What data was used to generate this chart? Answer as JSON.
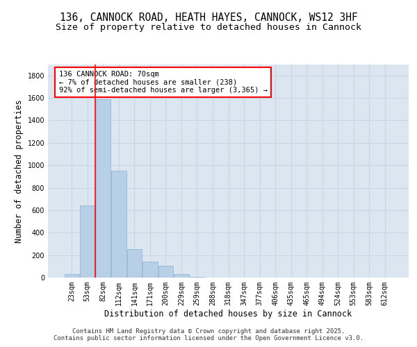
{
  "title_line1": "136, CANNOCK ROAD, HEATH HAYES, CANNOCK, WS12 3HF",
  "title_line2": "Size of property relative to detached houses in Cannock",
  "xlabel": "Distribution of detached houses by size in Cannock",
  "ylabel": "Number of detached properties",
  "categories": [
    "23sqm",
    "53sqm",
    "82sqm",
    "112sqm",
    "141sqm",
    "171sqm",
    "200sqm",
    "229sqm",
    "259sqm",
    "288sqm",
    "318sqm",
    "347sqm",
    "377sqm",
    "406sqm",
    "435sqm",
    "465sqm",
    "494sqm",
    "524sqm",
    "553sqm",
    "583sqm",
    "612sqm"
  ],
  "values": [
    30,
    645,
    1590,
    950,
    255,
    140,
    105,
    30,
    8,
    0,
    0,
    0,
    0,
    0,
    0,
    0,
    0,
    0,
    0,
    0,
    0
  ],
  "bar_color": "#b8cfe8",
  "bar_edge_color": "#8ab0d0",
  "grid_color": "#c8d4e4",
  "background_color": "#dce6f0",
  "annotation_text": "136 CANNOCK ROAD: 70sqm\n← 7% of detached houses are smaller (238)\n92% of semi-detached houses are larger (3,365) →",
  "annotation_box_color": "white",
  "annotation_box_edge": "red",
  "vline_color": "red",
  "ylim": [
    0,
    1900
  ],
  "yticks": [
    0,
    200,
    400,
    600,
    800,
    1000,
    1200,
    1400,
    1600,
    1800
  ],
  "footer_text": "Contains HM Land Registry data © Crown copyright and database right 2025.\nContains public sector information licensed under the Open Government Licence v3.0.",
  "title_fontsize": 10.5,
  "subtitle_fontsize": 9.5,
  "axis_label_fontsize": 8.5,
  "tick_fontsize": 7,
  "annotation_fontsize": 7.5
}
